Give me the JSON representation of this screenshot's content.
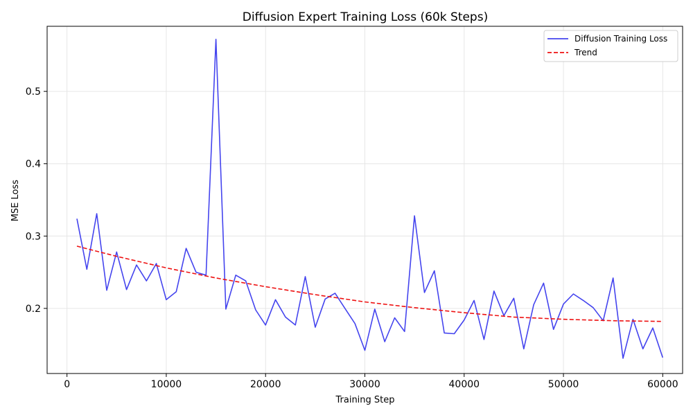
{
  "chart_data": {
    "type": "line",
    "title": "Diffusion Expert Training Loss (60k Steps)",
    "xlabel": "Training Step",
    "ylabel": "MSE Loss",
    "xlim": [
      -2000,
      62000
    ],
    "ylim": [
      0.11,
      0.59
    ],
    "xticks": [
      0,
      10000,
      20000,
      30000,
      40000,
      50000,
      60000
    ],
    "xtick_labels": [
      "0",
      "10000",
      "20000",
      "30000",
      "40000",
      "50000",
      "60000"
    ],
    "yticks": [
      0.2,
      0.3,
      0.4,
      0.5
    ],
    "ytick_labels": [
      "0.2",
      "0.3",
      "0.4",
      "0.5"
    ],
    "grid": true,
    "legend_position": "top-right",
    "series": [
      {
        "name": "Diffusion Training Loss",
        "color": "#4444ee",
        "style": "solid",
        "x": [
          1000,
          2000,
          3000,
          4000,
          5000,
          6000,
          7000,
          8000,
          9000,
          10000,
          11000,
          12000,
          13000,
          14000,
          15000,
          16000,
          17000,
          18000,
          19000,
          20000,
          21000,
          22000,
          23000,
          24000,
          25000,
          26000,
          27000,
          28000,
          29000,
          30000,
          31000,
          32000,
          33000,
          34000,
          35000,
          36000,
          37000,
          38000,
          39000,
          40000,
          41000,
          42000,
          43000,
          44000,
          45000,
          46000,
          47000,
          48000,
          49000,
          50000,
          51000,
          52000,
          53000,
          54000,
          55000,
          56000,
          57000,
          58000,
          59000,
          60000
        ],
        "y": [
          0.324,
          0.254,
          0.331,
          0.225,
          0.278,
          0.226,
          0.26,
          0.238,
          0.262,
          0.212,
          0.223,
          0.283,
          0.25,
          0.246,
          0.572,
          0.199,
          0.246,
          0.238,
          0.198,
          0.177,
          0.212,
          0.188,
          0.177,
          0.244,
          0.174,
          0.213,
          0.221,
          0.2,
          0.179,
          0.142,
          0.199,
          0.154,
          0.187,
          0.168,
          0.328,
          0.222,
          0.252,
          0.166,
          0.165,
          0.184,
          0.211,
          0.157,
          0.224,
          0.19,
          0.214,
          0.144,
          0.205,
          0.235,
          0.171,
          0.206,
          0.22,
          0.211,
          0.201,
          0.183,
          0.242,
          0.131,
          0.185,
          0.144,
          0.173,
          0.132
        ]
      },
      {
        "name": "Trend",
        "color": "#ee1111",
        "style": "dashed",
        "x": [
          1000,
          5000,
          10000,
          15000,
          20000,
          25000,
          30000,
          35000,
          40000,
          45000,
          50000,
          55000,
          60000
        ],
        "y": [
          0.286,
          0.272,
          0.256,
          0.242,
          0.23,
          0.219,
          0.209,
          0.201,
          0.194,
          0.188,
          0.185,
          0.183,
          0.182
        ]
      }
    ]
  }
}
